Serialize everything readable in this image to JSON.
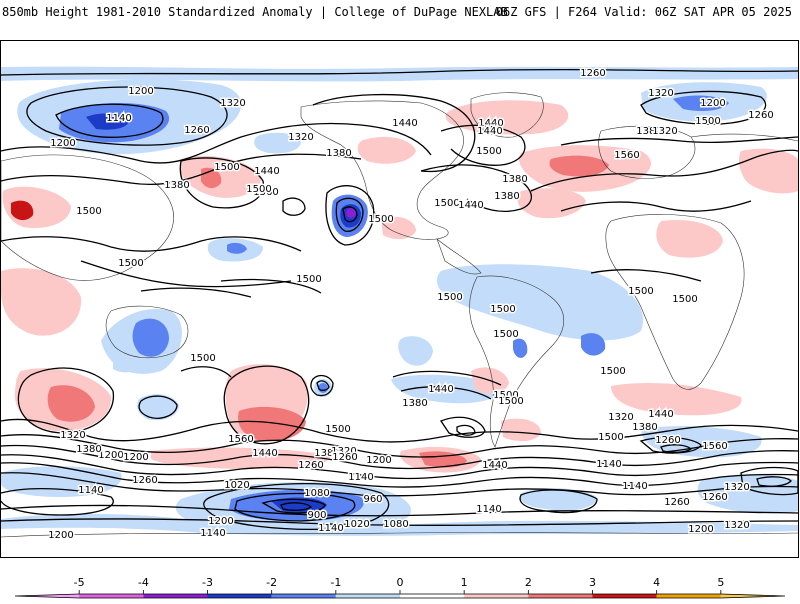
{
  "header": {
    "title_left": "850mb Height 1981-2010 Standardized Anomaly | College of DuPage NEXLAB",
    "title_right": "06Z GFS | F264 Valid: 06Z SAT APR 05 2025"
  },
  "colorbar": {
    "tick_labels": [
      "-5",
      "-4",
      "-3",
      "-2",
      "-1",
      "0",
      "1",
      "2",
      "3",
      "4",
      "5"
    ],
    "bins": [
      {
        "from": -5,
        "to": -4,
        "color": "#e060e0"
      },
      {
        "from": -4,
        "to": -3,
        "color": "#8c1ed2"
      },
      {
        "from": -3,
        "to": -2,
        "color": "#1c3cc8"
      },
      {
        "from": -2,
        "to": -1,
        "color": "#5a82f0"
      },
      {
        "from": -1,
        "to": 0,
        "color": "#c2dcfa"
      },
      {
        "from": 0,
        "to": 1,
        "color": "#ffffff"
      },
      {
        "from": 1,
        "to": 2,
        "color": "#fcc8c8"
      },
      {
        "from": 2,
        "to": 3,
        "color": "#f07878"
      },
      {
        "from": 3,
        "to": 4,
        "color": "#c81414"
      },
      {
        "from": 4,
        "to": 5,
        "color": "#f0a000"
      },
      {
        "from": 5,
        "to": 6,
        "color": "#f8c850"
      }
    ]
  },
  "contour_labels": [
    {
      "text": "1260"
    },
    {
      "text": "1200"
    },
    {
      "text": "1140"
    },
    {
      "text": "1200"
    },
    {
      "text": "1320"
    },
    {
      "text": "1260"
    },
    {
      "text": "1320"
    },
    {
      "text": "1380"
    },
    {
      "text": "1440"
    },
    {
      "text": "1500"
    },
    {
      "text": "1380"
    },
    {
      "text": "1440"
    },
    {
      "text": "1560"
    },
    {
      "text": "1500"
    },
    {
      "text": "1320"
    },
    {
      "text": "1380"
    },
    {
      "text": "1440"
    },
    {
      "text": "1500"
    },
    {
      "text": "1560"
    },
    {
      "text": "1500"
    },
    {
      "text": "1440"
    },
    {
      "text": "1380"
    },
    {
      "text": "1440"
    },
    {
      "text": "1380"
    },
    {
      "text": "1320"
    },
    {
      "text": "1200"
    },
    {
      "text": "1260"
    },
    {
      "text": "1500"
    },
    {
      "text": "1500"
    },
    {
      "text": "1500"
    },
    {
      "text": "1500"
    },
    {
      "text": "1500"
    },
    {
      "text": "1500"
    },
    {
      "text": "1500"
    },
    {
      "text": "1500"
    },
    {
      "text": "1500"
    },
    {
      "text": "1500"
    },
    {
      "text": "1500"
    },
    {
      "text": "1500"
    },
    {
      "text": "1500"
    },
    {
      "text": "1440"
    },
    {
      "text": "1380"
    },
    {
      "text": "1500"
    },
    {
      "text": "1560"
    },
    {
      "text": "1440"
    },
    {
      "text": "1500"
    },
    {
      "text": "1440"
    },
    {
      "text": "1380"
    },
    {
      "text": "1320"
    },
    {
      "text": "1260"
    },
    {
      "text": "1320"
    },
    {
      "text": "1200"
    },
    {
      "text": "1500"
    },
    {
      "text": "1560"
    },
    {
      "text": "1320"
    },
    {
      "text": "1380"
    },
    {
      "text": "1440"
    },
    {
      "text": "1380"
    },
    {
      "text": "1260"
    },
    {
      "text": "1200"
    },
    {
      "text": "1260"
    },
    {
      "text": "1200"
    },
    {
      "text": "1140"
    },
    {
      "text": "1320"
    },
    {
      "text": "1260"
    },
    {
      "text": "1200"
    },
    {
      "text": "1140"
    },
    {
      "text": "1080"
    },
    {
      "text": "1020"
    },
    {
      "text": "960"
    },
    {
      "text": "900"
    },
    {
      "text": "1020"
    },
    {
      "text": "1080"
    },
    {
      "text": "1140"
    },
    {
      "text": "1200"
    },
    {
      "text": "1140"
    },
    {
      "text": "1260"
    },
    {
      "text": "1320"
    },
    {
      "text": "1140"
    },
    {
      "text": "1140"
    },
    {
      "text": "1260"
    },
    {
      "text": "1200"
    },
    {
      "text": "1140"
    }
  ]
}
